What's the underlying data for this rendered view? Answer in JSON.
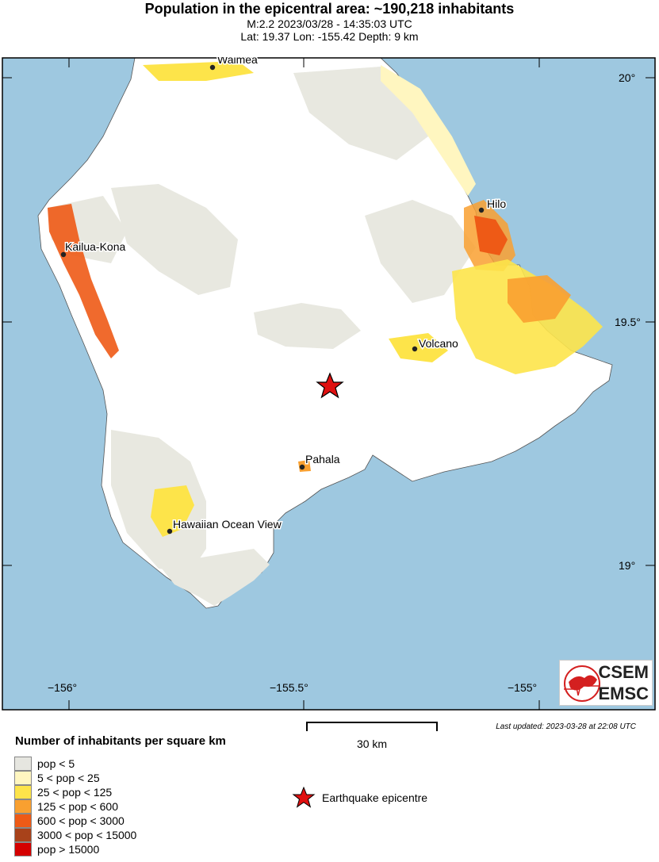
{
  "header": {
    "title": "Population in the epicentral area: ~190,218 inhabitants",
    "line1": "M:2.2 2023/03/28 - 14:35:03 UTC",
    "line2": "Lat: 19.37 Lon: -155.42 Depth: 9 km"
  },
  "map": {
    "lat_ticks": [
      "20°",
      "19.5°",
      "19°"
    ],
    "lon_ticks": [
      "−156°",
      "−155.5°",
      "−155°"
    ],
    "cities": [
      {
        "name": "Waimea"
      },
      {
        "name": "Hilo"
      },
      {
        "name": "Kailua-Kona"
      },
      {
        "name": "Volcano"
      },
      {
        "name": "Pahala"
      },
      {
        "name": "Hawaiian Ocean View"
      }
    ],
    "epicenter": {
      "lat": 19.37,
      "lon": -155.42
    },
    "colors": {
      "sea": "#9ec8e0",
      "land": "#ffffff",
      "pop_lt5": "#e8e8e0"
    }
  },
  "logo": {
    "line1": "CSEM",
    "line2": "EMSC"
  },
  "last_updated": "Last updated: 2023-03-28 at 22:08 UTC",
  "scale_bar": {
    "label": "30 km"
  },
  "legend": {
    "title": "Number of inhabitants per square km",
    "items": [
      {
        "label": "pop < 5",
        "color": "#e6e6e0"
      },
      {
        "label": "5 < pop < 25",
        "color": "#fff6c0"
      },
      {
        "label": "25 < pop < 125",
        "color": "#fde44a"
      },
      {
        "label": "125 < pop < 600",
        "color": "#f9a030"
      },
      {
        "label": "600 < pop < 3000",
        "color": "#ee5a16"
      },
      {
        "label": "3000 < pop < 15000",
        "color": "#a8421a"
      },
      {
        "label": "pop > 15000",
        "color": "#d40000"
      }
    ],
    "epicentre_label": "Earthquake epicentre"
  }
}
